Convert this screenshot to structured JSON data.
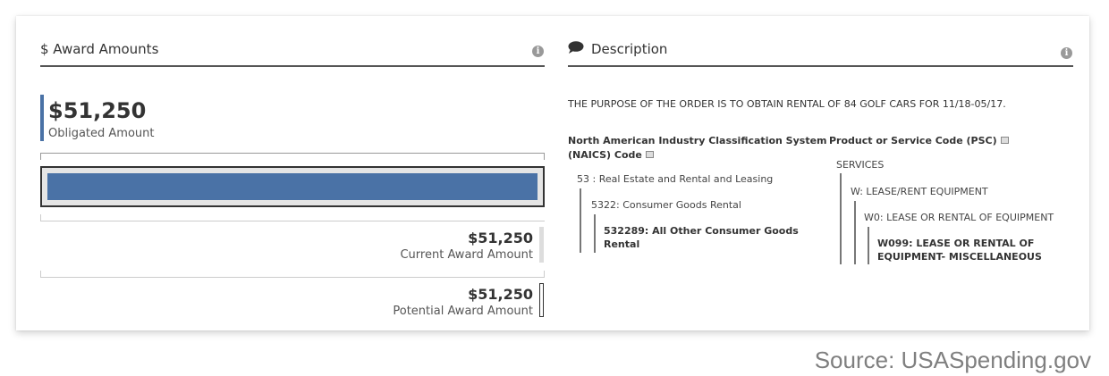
{
  "award_amounts": {
    "title": "$ Award Amounts",
    "obligated": {
      "amount": "$51,250",
      "label": "Obligated Amount"
    },
    "current": {
      "amount": "$51,250",
      "label": "Current Award Amount"
    },
    "potential": {
      "amount": "$51,250",
      "label": "Potential Award Amount"
    },
    "bar_fill_fraction": 1.0,
    "bar_color": "#4a72a6"
  },
  "description": {
    "title": "Description",
    "text": "THE PURPOSE OF THE ORDER IS TO OBTAIN RENTAL OF 84 GOLF CARS FOR 11/18-05/17.",
    "naics": {
      "heading_line1": "North American Industry Classification System",
      "heading_line2": "(NAICS) Code",
      "level1": "53 : Real Estate and Rental and Leasing",
      "level2": "5322: Consumer Goods Rental",
      "level3_line1": "532289: All Other Consumer Goods",
      "level3_line2": "Rental"
    },
    "psc": {
      "heading": "Product or Service Code (PSC)",
      "level1": "SERVICES",
      "level2": "W: LEASE/RENT EQUIPMENT",
      "level3": "W0: LEASE OR RENTAL OF EQUIPMENT",
      "level4_line1": "W099: LEASE OR RENTAL OF",
      "level4_line2": "EQUIPMENT- MISCELLANEOUS"
    }
  },
  "source": "Source: USASpending.gov"
}
